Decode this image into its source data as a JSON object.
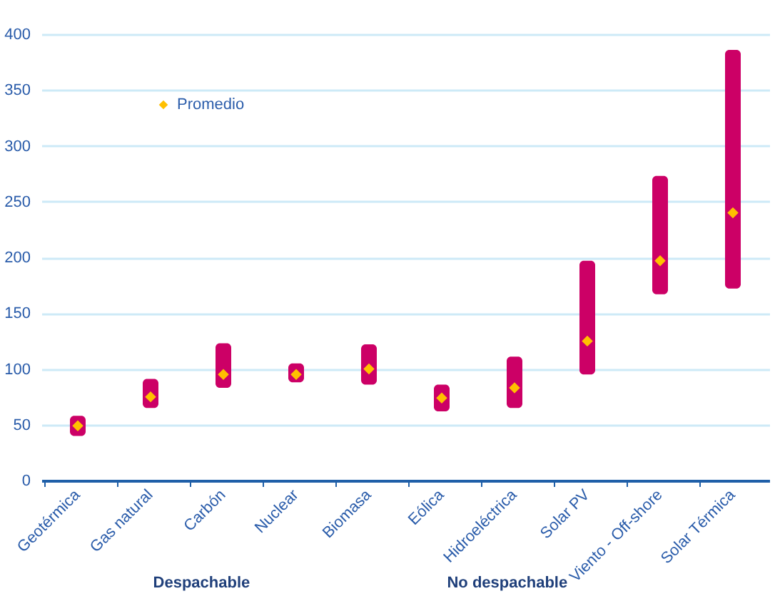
{
  "chart_data": {
    "type": "bar",
    "categories": [
      "Geotérmica",
      "Gas natural",
      "Carbón",
      "Nuclear",
      "Biomasa",
      "Eólica",
      "Hidroeléctrica",
      "Solar PV",
      "Viento - Off-shore",
      "Solar Térmica"
    ],
    "series": [
      {
        "color": "#cc0066",
        "base": [
          40,
          65,
          83,
          88,
          86,
          62,
          65,
          95,
          167,
          172
        ],
        "values": [
          18,
          26,
          40,
          17,
          36,
          24,
          46,
          102,
          106,
          214
        ]
      },
      {
        "type": "scatter",
        "name": "Promedio",
        "color": "#ffc000",
        "values": [
          49,
          75,
          95,
          95,
          100,
          74,
          83,
          125,
          197,
          240
        ]
      }
    ],
    "marker": "diamond",
    "ylim": [
      0,
      400
    ],
    "yticks": [
      0,
      50,
      100,
      150,
      200,
      250,
      300,
      350,
      400
    ],
    "grid": "y",
    "legend": "top left",
    "annotations": [
      "Despachable",
      "No despachable"
    ]
  }
}
